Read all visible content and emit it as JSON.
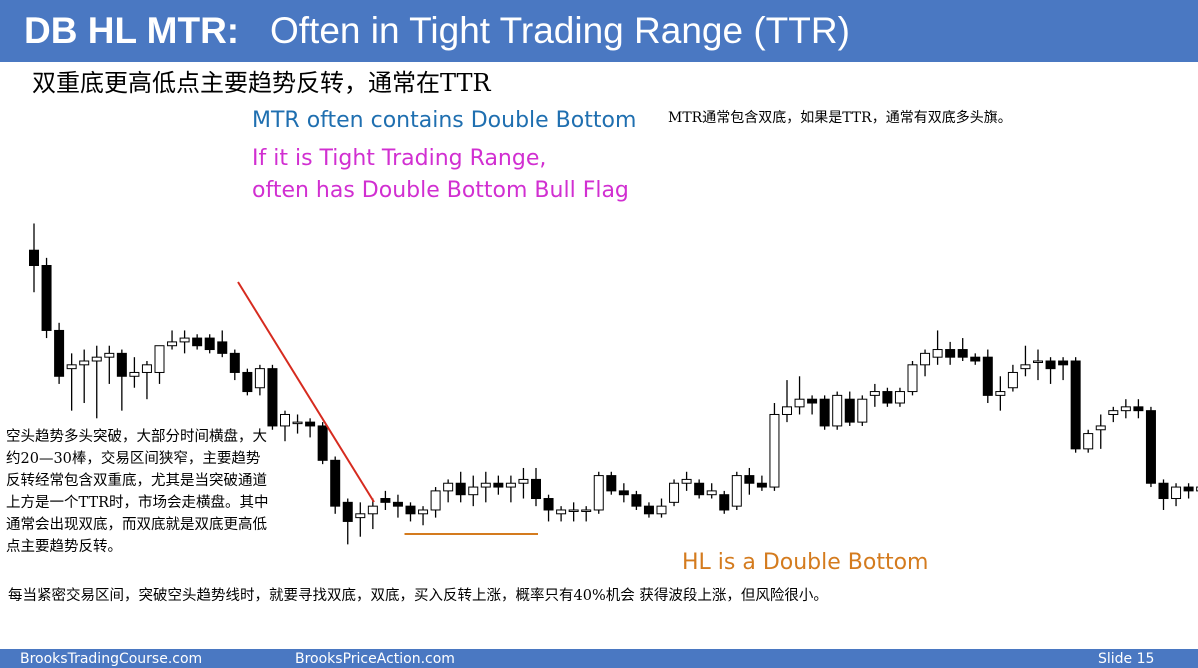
{
  "header": {
    "title_bold": "DB HL MTR:",
    "title_rest": "Often in Tight Trading Range (TTR)",
    "subtitle_cn": "双重底更高低点主要趋势反转，通常在TTR"
  },
  "annotations": {
    "mtr_db": "MTR often contains Double Bottom",
    "ttr_line1": "If it is Tight Trading Range,",
    "ttr_line2": "often has Double Bottom Bull Flag",
    "note_right": "MTR通常包含双底，如果是TTR，通常有双底多头旗。",
    "note_left": "空头趋势多头突破，大部分时间横盘，大约20—30棒，交易区间狭窄，主要趋势反转经常包含双重底，尤其是当突破通道上方是一个TTR时，市场会走横盘。其中通常会出现双底，而双底就是双底更高低点主要趋势反转。",
    "hl_label": "HL is a Double Bottom",
    "bottom_note": "每当紧密交易区间，突破空头趋势线时，就要寻找双底，双底，买入反转上涨，概率只有40%机会 获得波段上涨，但风险很小。"
  },
  "footer": {
    "left": "BrooksTradingCourse.com",
    "center": "BrooksPriceAction.com",
    "right": "Slide  15"
  },
  "colors": {
    "title_bar": "#4a78c2",
    "bull_body": "#ffffff",
    "bear_body": "#000000",
    "trendline": "#d62b1f",
    "double_bottom_line": "#d47b1e",
    "annotation_blue": "#1f6fb0",
    "annotation_magenta": "#d12fd1"
  },
  "chart_data": {
    "type": "candlestick",
    "note": "price scale not printed; values are relative price levels (higher = higher price)",
    "ylim": [
      0,
      100
    ],
    "candles": [
      {
        "o": 79,
        "h": 86,
        "l": 68,
        "c": 75
      },
      {
        "o": 75,
        "h": 77,
        "l": 56,
        "c": 58
      },
      {
        "o": 58,
        "h": 60,
        "l": 44,
        "c": 46
      },
      {
        "o": 48,
        "h": 52,
        "l": 37,
        "c": 49
      },
      {
        "o": 49,
        "h": 53,
        "l": 39,
        "c": 50
      },
      {
        "o": 50,
        "h": 54,
        "l": 35,
        "c": 51
      },
      {
        "o": 51,
        "h": 54,
        "l": 44,
        "c": 52
      },
      {
        "o": 52,
        "h": 53,
        "l": 37,
        "c": 46
      },
      {
        "o": 46,
        "h": 51,
        "l": 43,
        "c": 47
      },
      {
        "o": 47,
        "h": 50,
        "l": 40,
        "c": 49
      },
      {
        "o": 47,
        "h": 54,
        "l": 44,
        "c": 54
      },
      {
        "o": 54,
        "h": 58,
        "l": 53,
        "c": 55
      },
      {
        "o": 55,
        "h": 58,
        "l": 52,
        "c": 56
      },
      {
        "o": 56,
        "h": 57,
        "l": 53,
        "c": 54
      },
      {
        "o": 56,
        "h": 57,
        "l": 52,
        "c": 53
      },
      {
        "o": 55,
        "h": 58,
        "l": 51,
        "c": 52
      },
      {
        "o": 52,
        "h": 53,
        "l": 45,
        "c": 47
      },
      {
        "o": 47,
        "h": 48,
        "l": 41,
        "c": 42
      },
      {
        "o": 43,
        "h": 49,
        "l": 41,
        "c": 48
      },
      {
        "o": 48,
        "h": 49,
        "l": 32,
        "c": 33
      },
      {
        "o": 33,
        "h": 37,
        "l": 29,
        "c": 36
      },
      {
        "o": 34,
        "h": 36,
        "l": 31,
        "c": 34
      },
      {
        "o": 34,
        "h": 35,
        "l": 30,
        "c": 33
      },
      {
        "o": 33,
        "h": 34,
        "l": 23,
        "c": 24
      },
      {
        "o": 24,
        "h": 25,
        "l": 10,
        "c": 12
      },
      {
        "o": 13,
        "h": 14,
        "l": 2,
        "c": 8
      },
      {
        "o": 9,
        "h": 13,
        "l": 4,
        "c": 10
      },
      {
        "o": 10,
        "h": 14,
        "l": 6,
        "c": 12
      },
      {
        "o": 14,
        "h": 16,
        "l": 11,
        "c": 13
      },
      {
        "o": 13,
        "h": 15,
        "l": 9,
        "c": 12
      },
      {
        "o": 12,
        "h": 13,
        "l": 8,
        "c": 10
      },
      {
        "o": 10,
        "h": 12,
        "l": 7,
        "c": 11
      },
      {
        "o": 11,
        "h": 17,
        "l": 9,
        "c": 16
      },
      {
        "o": 16,
        "h": 19,
        "l": 13,
        "c": 18
      },
      {
        "o": 18,
        "h": 21,
        "l": 13,
        "c": 15
      },
      {
        "o": 15,
        "h": 20,
        "l": 12,
        "c": 17
      },
      {
        "o": 17,
        "h": 21,
        "l": 13,
        "c": 18
      },
      {
        "o": 18,
        "h": 20,
        "l": 15,
        "c": 17
      },
      {
        "o": 17,
        "h": 20,
        "l": 13,
        "c": 18
      },
      {
        "o": 18,
        "h": 22,
        "l": 14,
        "c": 19
      },
      {
        "o": 19,
        "h": 22,
        "l": 12,
        "c": 14
      },
      {
        "o": 14,
        "h": 15,
        "l": 8,
        "c": 11
      },
      {
        "o": 10,
        "h": 12,
        "l": 8,
        "c": 11
      },
      {
        "o": 11,
        "h": 13,
        "l": 8,
        "c": 11
      },
      {
        "o": 11,
        "h": 12,
        "l": 8,
        "c": 11
      },
      {
        "o": 11,
        "h": 21,
        "l": 10,
        "c": 20
      },
      {
        "o": 20,
        "h": 21,
        "l": 15,
        "c": 16
      },
      {
        "o": 16,
        "h": 18,
        "l": 13,
        "c": 15
      },
      {
        "o": 15,
        "h": 16,
        "l": 11,
        "c": 12
      },
      {
        "o": 12,
        "h": 13,
        "l": 9,
        "c": 10
      },
      {
        "o": 10,
        "h": 14,
        "l": 9,
        "c": 12
      },
      {
        "o": 13,
        "h": 19,
        "l": 12,
        "c": 18
      },
      {
        "o": 18,
        "h": 21,
        "l": 16,
        "c": 19
      },
      {
        "o": 18,
        "h": 19,
        "l": 14,
        "c": 15
      },
      {
        "o": 15,
        "h": 18,
        "l": 14,
        "c": 16
      },
      {
        "o": 15,
        "h": 16,
        "l": 10,
        "c": 11
      },
      {
        "o": 12,
        "h": 21,
        "l": 11,
        "c": 20
      },
      {
        "o": 20,
        "h": 22,
        "l": 15,
        "c": 18
      },
      {
        "o": 18,
        "h": 20,
        "l": 16,
        "c": 17
      },
      {
        "o": 17,
        "h": 39,
        "l": 16,
        "c": 36
      },
      {
        "o": 36,
        "h": 45,
        "l": 34,
        "c": 38
      },
      {
        "o": 38,
        "h": 46,
        "l": 36,
        "c": 40
      },
      {
        "o": 40,
        "h": 41,
        "l": 36,
        "c": 39
      },
      {
        "o": 40,
        "h": 41,
        "l": 32,
        "c": 33
      },
      {
        "o": 33,
        "h": 42,
        "l": 32,
        "c": 41
      },
      {
        "o": 40,
        "h": 42,
        "l": 33,
        "c": 34
      },
      {
        "o": 34,
        "h": 41,
        "l": 33,
        "c": 40
      },
      {
        "o": 41,
        "h": 44,
        "l": 38,
        "c": 42
      },
      {
        "o": 42,
        "h": 43,
        "l": 38,
        "c": 39
      },
      {
        "o": 39,
        "h": 43,
        "l": 38,
        "c": 42
      },
      {
        "o": 42,
        "h": 50,
        "l": 41,
        "c": 49
      },
      {
        "o": 49,
        "h": 53,
        "l": 46,
        "c": 52
      },
      {
        "o": 51,
        "h": 58,
        "l": 49,
        "c": 53
      },
      {
        "o": 53,
        "h": 55,
        "l": 49,
        "c": 51
      },
      {
        "o": 53,
        "h": 56,
        "l": 50,
        "c": 51
      },
      {
        "o": 51,
        "h": 52,
        "l": 49,
        "c": 50
      },
      {
        "o": 51,
        "h": 53,
        "l": 39,
        "c": 41
      },
      {
        "o": 41,
        "h": 46,
        "l": 37,
        "c": 42
      },
      {
        "o": 43,
        "h": 49,
        "l": 42,
        "c": 47
      },
      {
        "o": 48,
        "h": 54,
        "l": 46,
        "c": 49
      },
      {
        "o": 50,
        "h": 53,
        "l": 45,
        "c": 50
      },
      {
        "o": 50,
        "h": 51,
        "l": 44,
        "c": 48
      },
      {
        "o": 50,
        "h": 51,
        "l": 45,
        "c": 49
      },
      {
        "o": 50,
        "h": 51,
        "l": 26,
        "c": 27
      },
      {
        "o": 27,
        "h": 32,
        "l": 26,
        "c": 31
      },
      {
        "o": 32,
        "h": 36,
        "l": 27,
        "c": 33
      },
      {
        "o": 36,
        "h": 38,
        "l": 34,
        "c": 37
      },
      {
        "o": 37,
        "h": 40,
        "l": 35,
        "c": 38
      },
      {
        "o": 38,
        "h": 40,
        "l": 35,
        "c": 37
      },
      {
        "o": 37,
        "h": 38,
        "l": 17,
        "c": 18
      },
      {
        "o": 18,
        "h": 19,
        "l": 11,
        "c": 14
      },
      {
        "o": 14,
        "h": 18,
        "l": 12,
        "c": 17
      },
      {
        "o": 17,
        "h": 18,
        "l": 14,
        "c": 16
      },
      {
        "o": 16,
        "h": 20,
        "l": 14,
        "c": 17
      }
    ]
  }
}
